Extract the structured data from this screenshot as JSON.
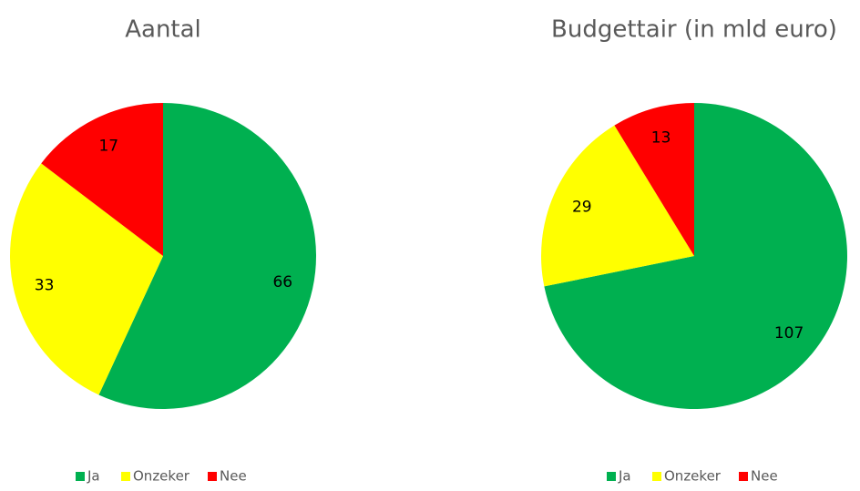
{
  "chart_data": [
    {
      "type": "pie",
      "title": "Aantal",
      "categories": [
        "Ja",
        "Onzeker",
        "Nee"
      ],
      "values": [
        66,
        33,
        17
      ],
      "colors": [
        "#00b050",
        "#ffff00",
        "#ff0000"
      ],
      "legend": "bottom"
    },
    {
      "type": "pie",
      "title": "Budgettair (in mld euro)",
      "categories": [
        "Ja",
        "Onzeker",
        "Nee"
      ],
      "values": [
        107,
        29,
        13
      ],
      "colors": [
        "#00b050",
        "#ffff00",
        "#ff0000"
      ],
      "legend": "bottom"
    }
  ]
}
